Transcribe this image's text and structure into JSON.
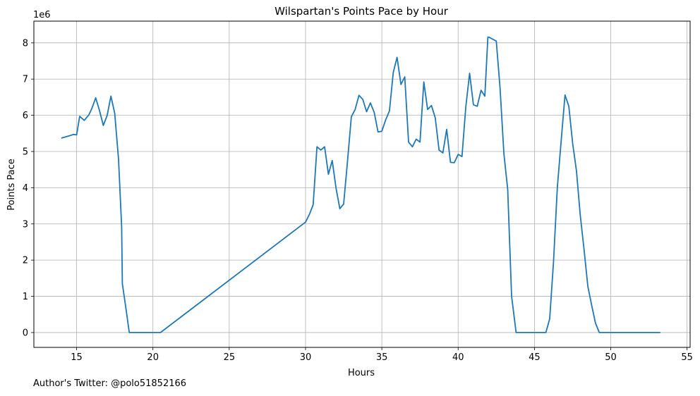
{
  "chart_data": {
    "type": "line",
    "title": "Wilspartan's Points Pace by Hour",
    "xlabel": "Hours",
    "ylabel": "Points Pace",
    "y_offset_label": "1e6",
    "xlim": [
      12.2,
      55.2
    ],
    "ylim": [
      -0.41,
      8.6
    ],
    "xticks": [
      15,
      20,
      25,
      30,
      35,
      40,
      45,
      50,
      55
    ],
    "yticks": [
      0,
      1,
      2,
      3,
      4,
      5,
      6,
      7,
      8
    ],
    "grid": true,
    "series": [
      {
        "color": "#1f77b4",
        "x": [
          14.0,
          14.5,
          14.8,
          15.0,
          15.2,
          15.5,
          15.8,
          16.0,
          16.25,
          16.5,
          16.75,
          17.0,
          17.25,
          17.5,
          17.75,
          17.95,
          18.0,
          18.25,
          18.45,
          19.0,
          20.0,
          20.5,
          30.0,
          30.25,
          30.5,
          30.75,
          31.0,
          31.25,
          31.5,
          31.75,
          32.0,
          32.25,
          32.5,
          32.75,
          33.0,
          33.25,
          33.5,
          33.75,
          34.0,
          34.25,
          34.5,
          34.75,
          35.0,
          35.25,
          35.5,
          35.75,
          36.0,
          36.25,
          36.5,
          36.75,
          37.0,
          37.25,
          37.5,
          37.75,
          38.0,
          38.25,
          38.5,
          38.75,
          39.0,
          39.25,
          39.5,
          39.75,
          40.0,
          40.25,
          40.5,
          40.75,
          41.0,
          41.25,
          41.5,
          41.75,
          41.95,
          42.0,
          42.5,
          42.75,
          43.0,
          43.25,
          43.5,
          43.8,
          44.0,
          45.0,
          45.75,
          46.0,
          46.25,
          46.5,
          46.75,
          47.0,
          47.25,
          47.5,
          47.75,
          48.0,
          48.25,
          48.5,
          48.75,
          49.0,
          49.25,
          50.0,
          51.0,
          52.0,
          53.25
        ],
        "y": [
          5.37,
          5.43,
          5.47,
          5.46,
          5.97,
          5.86,
          6.01,
          6.19,
          6.48,
          6.13,
          5.72,
          5.99,
          6.53,
          6.05,
          4.78,
          2.92,
          1.35,
          0.62,
          0.0,
          0.0,
          0.0,
          0.0,
          3.05,
          3.26,
          3.53,
          5.13,
          5.04,
          5.13,
          4.37,
          4.75,
          3.99,
          3.42,
          3.55,
          4.74,
          5.96,
          6.16,
          6.55,
          6.44,
          6.1,
          6.34,
          6.08,
          5.54,
          5.56,
          5.87,
          6.12,
          7.18,
          7.6,
          6.85,
          7.06,
          5.26,
          5.13,
          5.34,
          5.26,
          6.92,
          6.16,
          6.27,
          5.93,
          5.04,
          4.96,
          5.61,
          4.7,
          4.69,
          4.92,
          4.86,
          6.23,
          7.16,
          6.29,
          6.25,
          6.69,
          6.53,
          8.16,
          8.16,
          8.05,
          6.74,
          4.94,
          3.95,
          1.0,
          0.0,
          0.0,
          0.0,
          0.0,
          0.38,
          1.95,
          4.0,
          5.28,
          6.56,
          6.25,
          5.23,
          4.47,
          3.24,
          2.29,
          1.27,
          0.75,
          0.26,
          0.0,
          0.0,
          0.0,
          0.0,
          0.0
        ]
      }
    ]
  },
  "footer": "Author's Twitter: @polo51852166"
}
